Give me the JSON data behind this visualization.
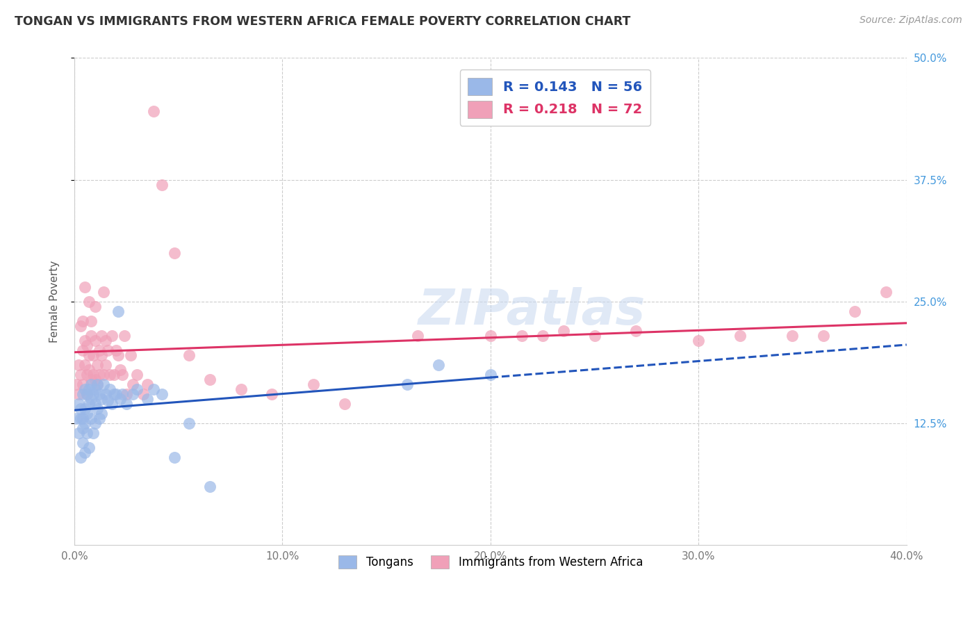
{
  "title": "TONGAN VS IMMIGRANTS FROM WESTERN AFRICA FEMALE POVERTY CORRELATION CHART",
  "source": "Source: ZipAtlas.com",
  "ylabel": "Female Poverty",
  "legend_label1": "Tongans",
  "legend_label2": "Immigrants from Western Africa",
  "r1": 0.143,
  "n1": 56,
  "r2": 0.218,
  "n2": 72,
  "color_blue": "#9ab8e8",
  "color_pink": "#f0a0b8",
  "color_blue_line": "#2255bb",
  "color_pink_line": "#dd3366",
  "background": "#ffffff",
  "grid_color": "#cccccc",
  "xlim": [
    0.0,
    0.4
  ],
  "ylim": [
    0.0,
    0.5
  ],
  "xticks": [
    0.0,
    0.1,
    0.2,
    0.3,
    0.4
  ],
  "yticks": [
    0.125,
    0.25,
    0.375,
    0.5
  ],
  "xtick_labels": [
    "0.0%",
    "10.0%",
    "20.0%",
    "30.0%",
    "40.0%"
  ],
  "ytick_labels": [
    "12.5%",
    "25.0%",
    "37.5%",
    "50.0%"
  ],
  "blue_x": [
    0.001,
    0.002,
    0.002,
    0.003,
    0.003,
    0.003,
    0.004,
    0.004,
    0.004,
    0.004,
    0.005,
    0.005,
    0.005,
    0.005,
    0.006,
    0.006,
    0.006,
    0.007,
    0.007,
    0.007,
    0.008,
    0.008,
    0.008,
    0.009,
    0.009,
    0.01,
    0.01,
    0.01,
    0.011,
    0.011,
    0.012,
    0.012,
    0.013,
    0.013,
    0.014,
    0.015,
    0.016,
    0.017,
    0.018,
    0.019,
    0.02,
    0.021,
    0.022,
    0.023,
    0.025,
    0.028,
    0.03,
    0.035,
    0.038,
    0.042,
    0.048,
    0.055,
    0.065,
    0.16,
    0.175,
    0.2
  ],
  "blue_y": [
    0.13,
    0.145,
    0.115,
    0.13,
    0.14,
    0.09,
    0.155,
    0.13,
    0.12,
    0.105,
    0.14,
    0.16,
    0.125,
    0.095,
    0.155,
    0.135,
    0.115,
    0.16,
    0.145,
    0.1,
    0.15,
    0.165,
    0.13,
    0.155,
    0.115,
    0.16,
    0.145,
    0.125,
    0.165,
    0.14,
    0.155,
    0.13,
    0.15,
    0.135,
    0.165,
    0.155,
    0.148,
    0.16,
    0.145,
    0.155,
    0.155,
    0.24,
    0.15,
    0.155,
    0.145,
    0.155,
    0.16,
    0.15,
    0.16,
    0.155,
    0.09,
    0.125,
    0.06,
    0.165,
    0.185,
    0.175
  ],
  "pink_x": [
    0.001,
    0.002,
    0.002,
    0.003,
    0.003,
    0.004,
    0.004,
    0.004,
    0.005,
    0.005,
    0.005,
    0.006,
    0.006,
    0.006,
    0.007,
    0.007,
    0.007,
    0.008,
    0.008,
    0.008,
    0.009,
    0.009,
    0.01,
    0.01,
    0.01,
    0.011,
    0.011,
    0.012,
    0.012,
    0.013,
    0.013,
    0.014,
    0.014,
    0.015,
    0.015,
    0.016,
    0.017,
    0.018,
    0.019,
    0.02,
    0.021,
    0.022,
    0.023,
    0.024,
    0.025,
    0.027,
    0.028,
    0.03,
    0.033,
    0.035,
    0.038,
    0.042,
    0.048,
    0.055,
    0.065,
    0.08,
    0.095,
    0.115,
    0.13,
    0.165,
    0.2,
    0.215,
    0.225,
    0.235,
    0.25,
    0.27,
    0.3,
    0.32,
    0.345,
    0.36,
    0.375,
    0.39
  ],
  "pink_y": [
    0.165,
    0.155,
    0.185,
    0.175,
    0.225,
    0.165,
    0.2,
    0.23,
    0.265,
    0.185,
    0.21,
    0.175,
    0.205,
    0.155,
    0.195,
    0.18,
    0.25,
    0.17,
    0.23,
    0.215,
    0.175,
    0.195,
    0.21,
    0.17,
    0.245,
    0.185,
    0.165,
    0.2,
    0.175,
    0.215,
    0.195,
    0.26,
    0.175,
    0.21,
    0.185,
    0.2,
    0.175,
    0.215,
    0.175,
    0.2,
    0.195,
    0.18,
    0.175,
    0.215,
    0.155,
    0.195,
    0.165,
    0.175,
    0.155,
    0.165,
    0.445,
    0.37,
    0.3,
    0.195,
    0.17,
    0.16,
    0.155,
    0.165,
    0.145,
    0.215,
    0.215,
    0.215,
    0.215,
    0.22,
    0.215,
    0.22,
    0.21,
    0.215,
    0.215,
    0.215,
    0.24,
    0.26
  ],
  "blue_line_solid_end": 0.08,
  "blue_line_intercept": 0.136,
  "blue_line_slope": 0.28,
  "pink_line_intercept": 0.155,
  "pink_line_slope": 0.22
}
